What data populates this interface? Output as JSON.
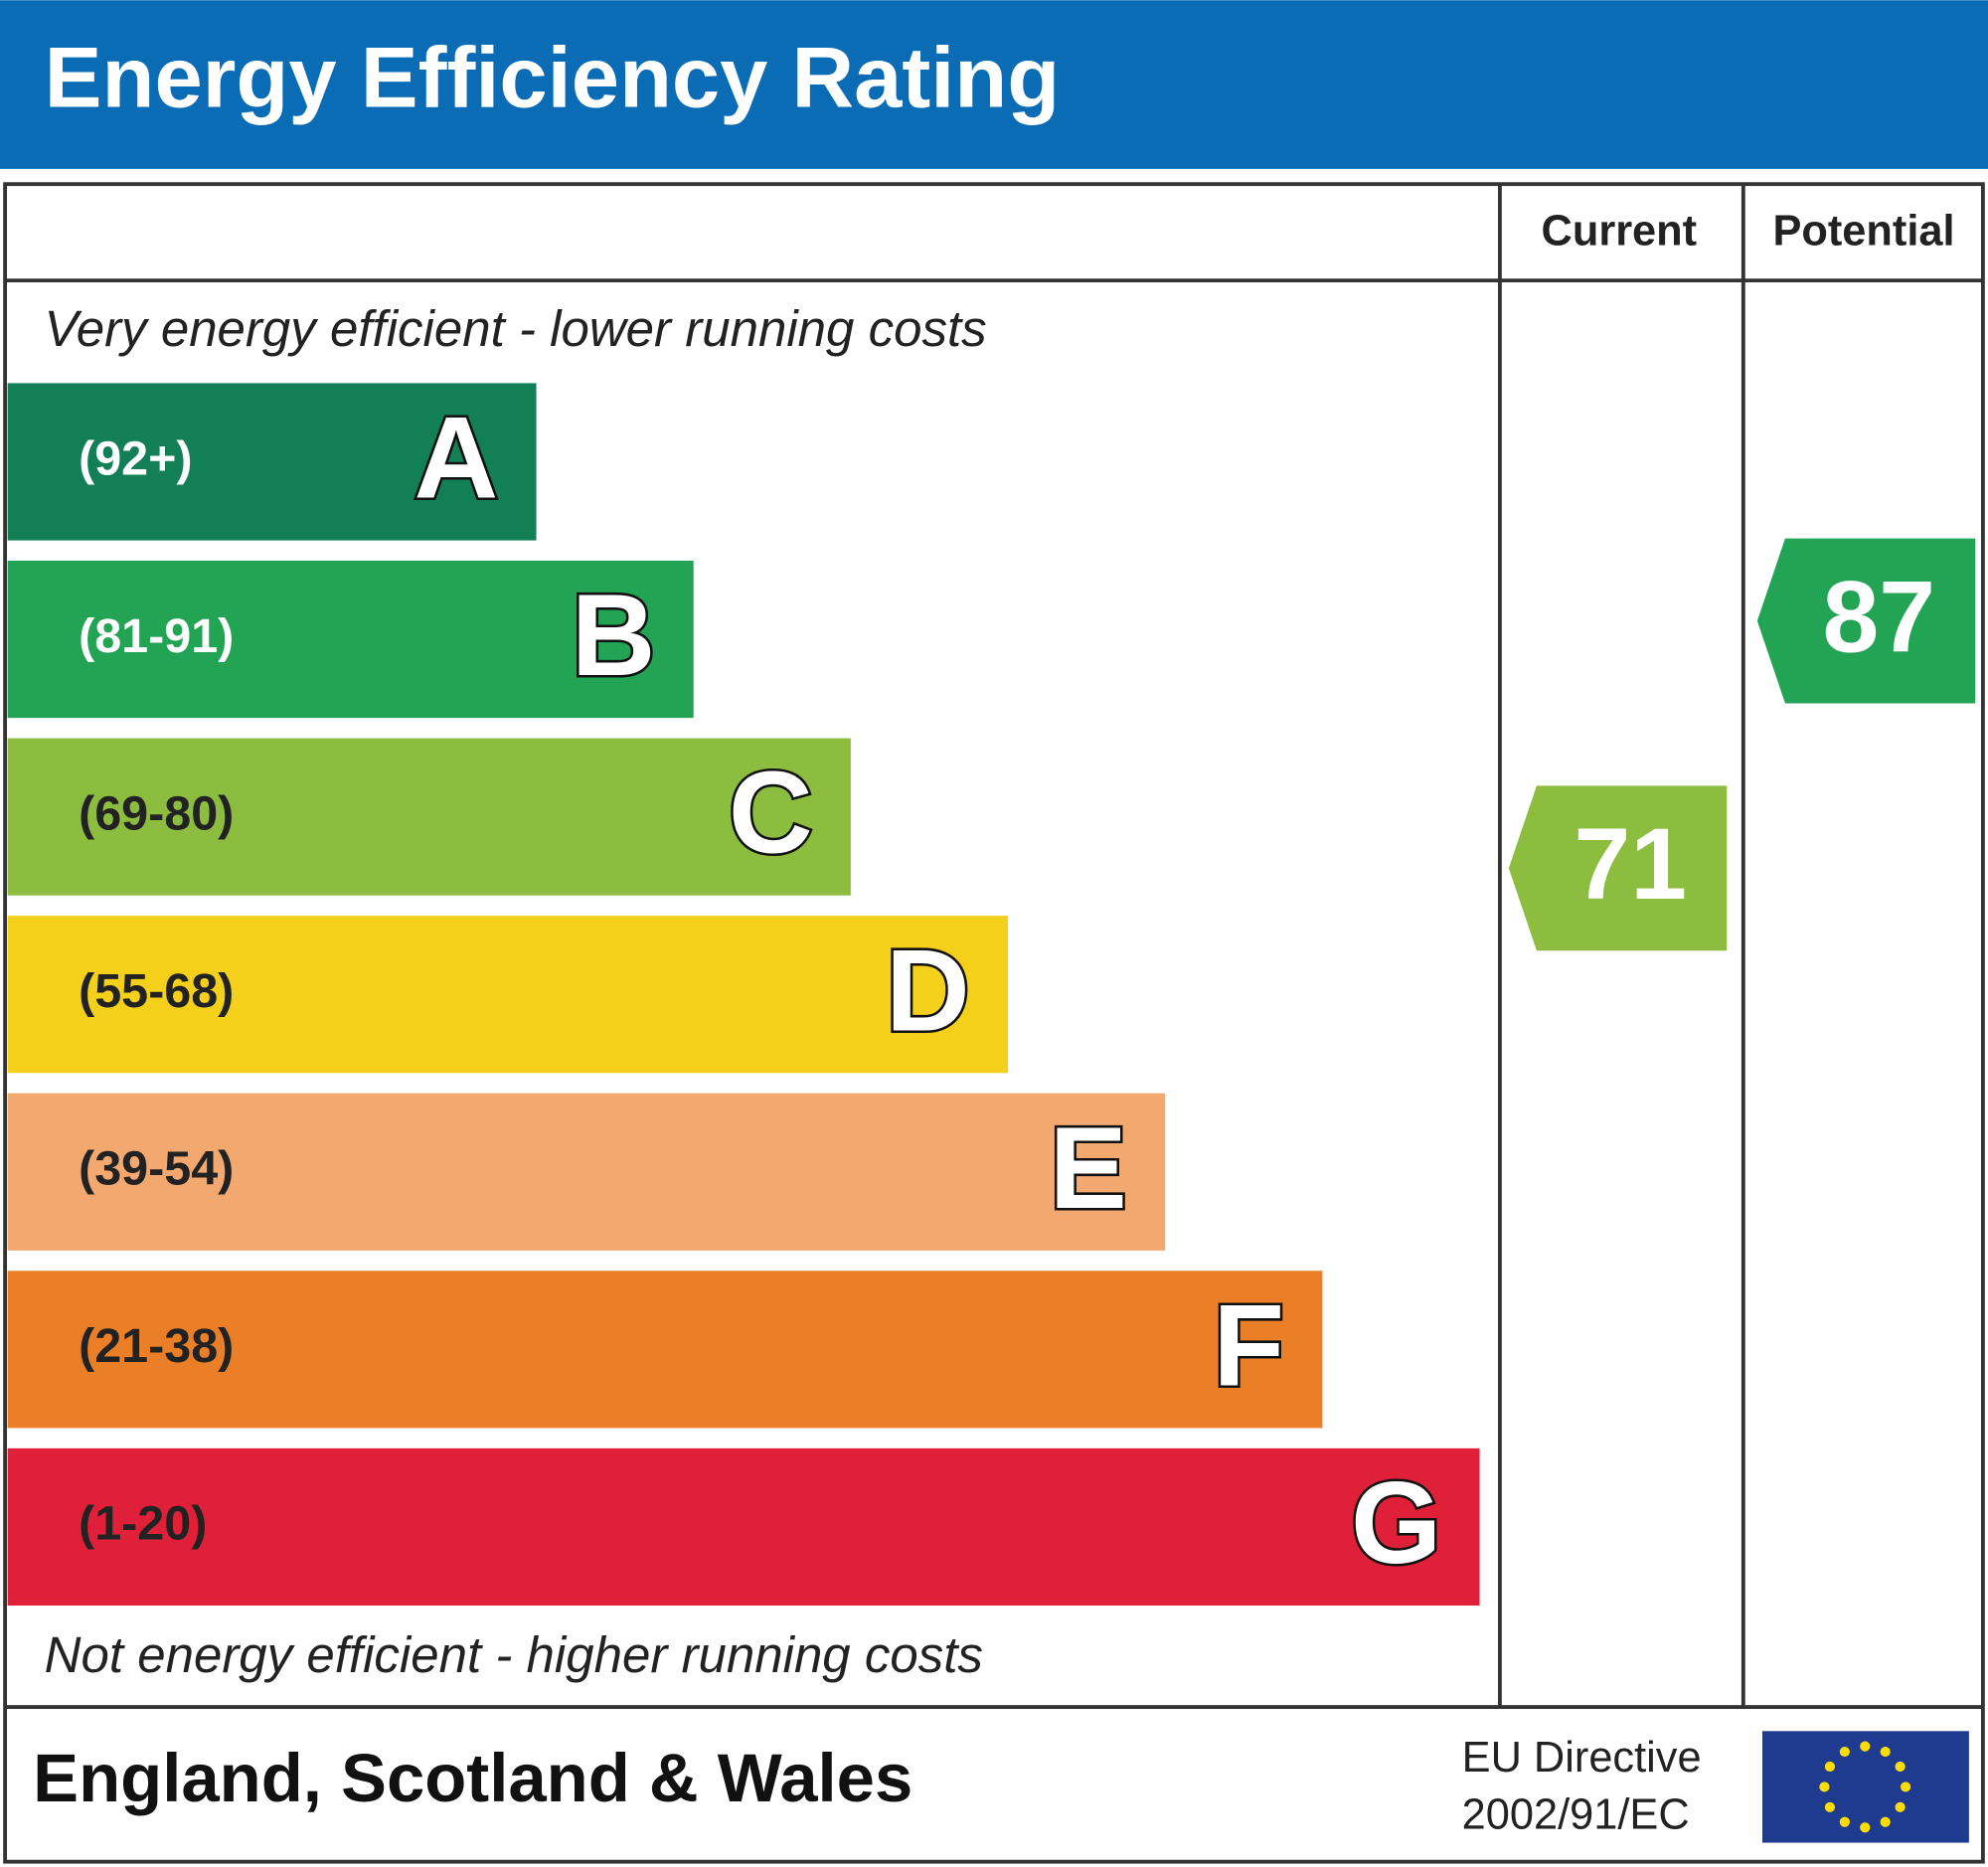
{
  "header": {
    "title": "Energy Efficiency Rating"
  },
  "columns": [
    "Current",
    "Potential"
  ],
  "top_note": "Very energy efficient - lower running costs",
  "bands": [
    {
      "range": "(92+)",
      "letter": "A",
      "color": "#127f57",
      "text_color": "#ffffff"
    },
    {
      "range": "(81-91)",
      "letter": "B",
      "color": "#23a455",
      "text_color": "#ffffff"
    },
    {
      "range": "(69-80)",
      "letter": "C",
      "color": "#8dbd3f",
      "text_color": "#222222"
    },
    {
      "range": "(55-68)",
      "letter": "D",
      "color": "#f5d01a",
      "text_color": "#222222"
    },
    {
      "range": "(39-54)",
      "letter": "E",
      "color": "#f2a86f",
      "text_color": "#222222"
    },
    {
      "range": "(21-38)",
      "letter": "F",
      "color": "#eb7f27",
      "text_color": "#222222"
    },
    {
      "range": "(1-20)",
      "letter": "G",
      "color": "#e02038",
      "text_color": "#222222"
    }
  ],
  "ratings": [
    {
      "value": 71,
      "color": "#8dbd3f"
    },
    {
      "value": 87,
      "color": "#23a455"
    }
  ],
  "bottom_note": "Not energy efficient - higher running costs",
  "footer": {
    "region": "England, Scotland & Wales",
    "directive": [
      "EU Directive",
      "2002/91/EC"
    ]
  }
}
